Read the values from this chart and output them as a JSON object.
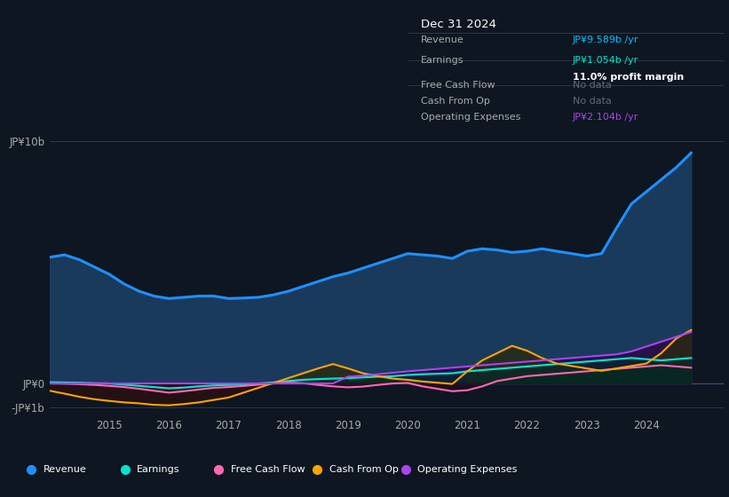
{
  "bg_color": "#0e1621",
  "plot_bg_color": "#0e1621",
  "tooltip_bg": "#0a0e18",
  "legend_bg": "#111827",
  "grid_color": "#1c2d3f",
  "title_box": {
    "date": "Dec 31 2024",
    "rows": [
      {
        "label": "Revenue",
        "value": "JP¥9.589b /yr",
        "value_color": "#00bfff",
        "subtext": null,
        "sep_after": true
      },
      {
        "label": "Earnings",
        "value": "JP¥1.054b /yr",
        "value_color": "#00e5cc",
        "subtext": "11.0% profit margin",
        "sep_after": true
      },
      {
        "label": "Free Cash Flow",
        "value": "No data",
        "value_color": "#666677",
        "subtext": null,
        "sep_after": false
      },
      {
        "label": "Cash From Op",
        "value": "No data",
        "value_color": "#666677",
        "subtext": null,
        "sep_after": false
      },
      {
        "label": "Operating Expenses",
        "value": "JP¥2.104b /yr",
        "value_color": "#aa44ee",
        "subtext": null,
        "sep_after": false
      }
    ]
  },
  "years": [
    2014.0,
    2014.25,
    2014.5,
    2014.75,
    2015.0,
    2015.25,
    2015.5,
    2015.75,
    2016.0,
    2016.25,
    2016.5,
    2016.75,
    2017.0,
    2017.25,
    2017.5,
    2017.75,
    2018.0,
    2018.25,
    2018.5,
    2018.75,
    2019.0,
    2019.25,
    2019.5,
    2019.75,
    2020.0,
    2020.25,
    2020.5,
    2020.75,
    2021.0,
    2021.25,
    2021.5,
    2021.75,
    2022.0,
    2022.25,
    2022.5,
    2022.75,
    2023.0,
    2023.25,
    2023.5,
    2023.75,
    2024.0,
    2024.25,
    2024.5,
    2024.75
  ],
  "revenue": [
    5.2,
    5.3,
    5.1,
    4.8,
    4.5,
    4.1,
    3.8,
    3.6,
    3.5,
    3.55,
    3.6,
    3.6,
    3.5,
    3.52,
    3.55,
    3.65,
    3.8,
    4.0,
    4.2,
    4.4,
    4.55,
    4.75,
    4.95,
    5.15,
    5.35,
    5.3,
    5.25,
    5.15,
    5.45,
    5.55,
    5.5,
    5.4,
    5.45,
    5.55,
    5.45,
    5.35,
    5.25,
    5.35,
    6.4,
    7.4,
    7.9,
    8.4,
    8.9,
    9.5
  ],
  "earnings": [
    0.05,
    0.04,
    0.03,
    0.01,
    0.0,
    -0.05,
    -0.1,
    -0.15,
    -0.2,
    -0.17,
    -0.12,
    -0.08,
    -0.06,
    -0.04,
    0.0,
    0.04,
    0.1,
    0.15,
    0.18,
    0.2,
    0.22,
    0.25,
    0.28,
    0.3,
    0.35,
    0.38,
    0.4,
    0.42,
    0.5,
    0.55,
    0.6,
    0.65,
    0.7,
    0.75,
    0.8,
    0.85,
    0.9,
    0.95,
    1.0,
    1.05,
    1.0,
    0.95,
    1.0,
    1.05
  ],
  "free_cash_flow": [
    0.0,
    -0.01,
    -0.03,
    -0.06,
    -0.1,
    -0.15,
    -0.22,
    -0.3,
    -0.38,
    -0.32,
    -0.25,
    -0.18,
    -0.15,
    -0.1,
    -0.05,
    0.0,
    0.04,
    0.01,
    -0.06,
    -0.12,
    -0.16,
    -0.13,
    -0.06,
    0.0,
    0.02,
    -0.12,
    -0.22,
    -0.32,
    -0.28,
    -0.12,
    0.1,
    0.2,
    0.3,
    0.35,
    0.4,
    0.45,
    0.5,
    0.55,
    0.6,
    0.65,
    0.7,
    0.75,
    0.7,
    0.65
  ],
  "cash_from_op": [
    -0.3,
    -0.42,
    -0.55,
    -0.65,
    -0.72,
    -0.78,
    -0.82,
    -0.88,
    -0.9,
    -0.85,
    -0.78,
    -0.68,
    -0.58,
    -0.38,
    -0.18,
    0.02,
    0.22,
    0.42,
    0.62,
    0.8,
    0.62,
    0.42,
    0.3,
    0.2,
    0.15,
    0.08,
    0.03,
    -0.02,
    0.5,
    0.95,
    1.25,
    1.55,
    1.35,
    1.05,
    0.82,
    0.72,
    0.62,
    0.52,
    0.62,
    0.72,
    0.82,
    1.25,
    1.85,
    2.2
  ],
  "operating_expenses": [
    0.0,
    0.0,
    0.0,
    0.0,
    0.0,
    0.0,
    0.0,
    0.0,
    0.0,
    0.0,
    0.0,
    0.0,
    0.0,
    0.0,
    0.0,
    0.0,
    0.0,
    0.0,
    0.0,
    0.0,
    0.28,
    0.32,
    0.38,
    0.44,
    0.5,
    0.55,
    0.6,
    0.65,
    0.7,
    0.75,
    0.8,
    0.85,
    0.9,
    0.95,
    1.0,
    1.05,
    1.1,
    1.15,
    1.2,
    1.32,
    1.52,
    1.72,
    1.92,
    2.12
  ],
  "revenue_color": "#1e90ff",
  "revenue_fill": "#1a3a5c",
  "earnings_color": "#00e5cc",
  "fcf_color": "#ff69b4",
  "cashop_color": "#ffa500",
  "opex_color": "#aa44ee",
  "legend": [
    {
      "label": "Revenue",
      "color": "#1e90ff"
    },
    {
      "label": "Earnings",
      "color": "#00e5cc"
    },
    {
      "label": "Free Cash Flow",
      "color": "#ff69b4"
    },
    {
      "label": "Cash From Op",
      "color": "#ffa500"
    },
    {
      "label": "Operating Expenses",
      "color": "#aa44ee"
    }
  ],
  "xticks": [
    2015,
    2016,
    2017,
    2018,
    2019,
    2020,
    2021,
    2022,
    2023,
    2024
  ],
  "ylim": [
    -1.3,
    11.5
  ],
  "xlim": [
    2014.0,
    2025.3
  ]
}
